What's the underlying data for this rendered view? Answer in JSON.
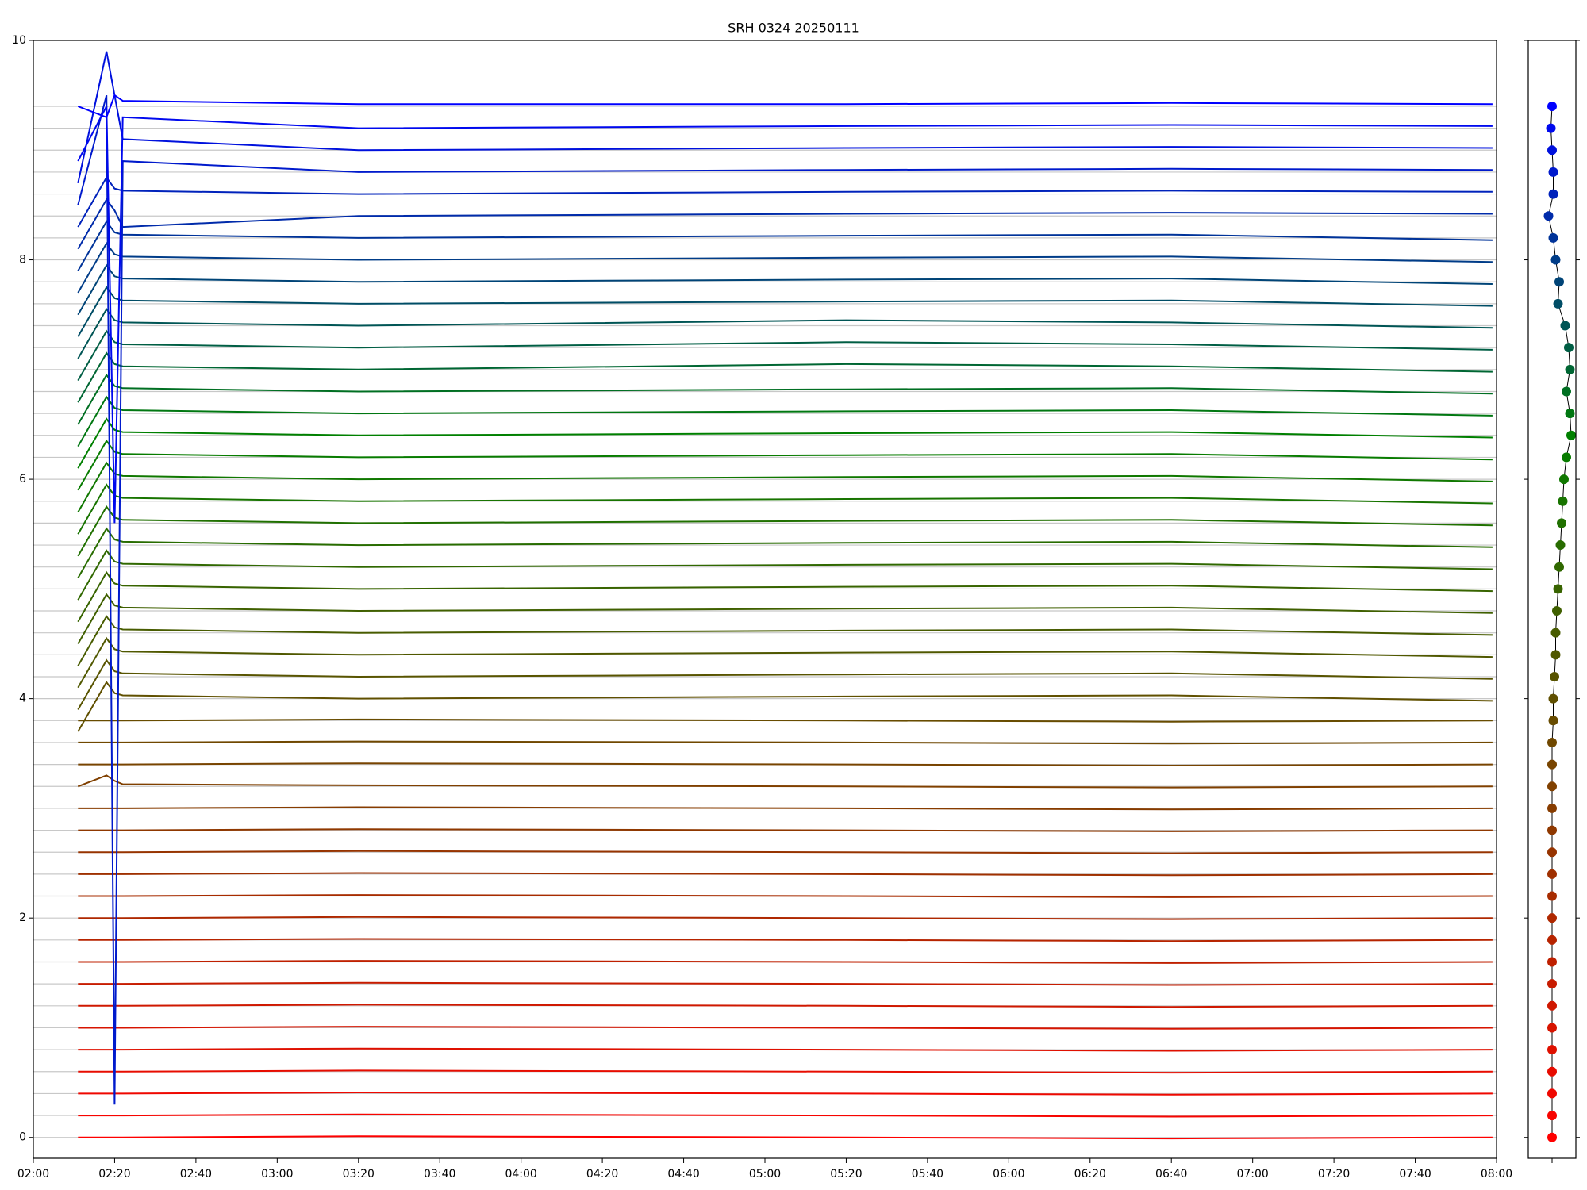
{
  "chart_data": [
    {
      "type": "line",
      "title": "SRH 0324 20250111",
      "x": [
        131,
        138,
        140,
        142,
        200,
        320,
        400,
        479
      ],
      "xlim": [
        120,
        480
      ],
      "xticks": [
        {
          "value": 120,
          "label": "02:00"
        },
        {
          "value": 140,
          "label": "02:20"
        },
        {
          "value": 160,
          "label": "02:40"
        },
        {
          "value": 180,
          "label": "03:00"
        },
        {
          "value": 200,
          "label": "03:20"
        },
        {
          "value": 220,
          "label": "03:40"
        },
        {
          "value": 240,
          "label": "04:00"
        },
        {
          "value": 260,
          "label": "04:20"
        },
        {
          "value": 280,
          "label": "04:40"
        },
        {
          "value": 300,
          "label": "05:00"
        },
        {
          "value": 320,
          "label": "05:20"
        },
        {
          "value": 340,
          "label": "05:40"
        },
        {
          "value": 360,
          "label": "06:00"
        },
        {
          "value": 380,
          "label": "06:20"
        },
        {
          "value": 400,
          "label": "06:40"
        },
        {
          "value": 420,
          "label": "07:00"
        },
        {
          "value": 440,
          "label": "07:20"
        },
        {
          "value": 460,
          "label": "07:40"
        },
        {
          "value": 480,
          "label": "08:00"
        }
      ],
      "ylim": [
        -0.19,
        10
      ],
      "yticks": [
        0,
        2,
        4,
        6,
        8,
        10
      ],
      "grid": true,
      "series": [
        {
          "color": "#ff0000",
          "values": [
            0,
            0,
            0,
            0,
            0.01,
            0,
            -0.01,
            0
          ]
        },
        {
          "color": "#f70400",
          "values": [
            0.2,
            0.2,
            0.2,
            0.2,
            0.21,
            0.2,
            0.19,
            0.2
          ]
        },
        {
          "color": "#ef0800",
          "values": [
            0.4,
            0.4,
            0.4,
            0.4,
            0.41,
            0.4,
            0.39,
            0.4
          ]
        },
        {
          "color": "#e70c00",
          "values": [
            0.6,
            0.6,
            0.6,
            0.6,
            0.61,
            0.6,
            0.59,
            0.6
          ]
        },
        {
          "color": "#df1000",
          "values": [
            0.8,
            0.8,
            0.8,
            0.8,
            0.81,
            0.8,
            0.79,
            0.8
          ]
        },
        {
          "color": "#d71400",
          "values": [
            1,
            1,
            1,
            1,
            1.01,
            1,
            0.99,
            1
          ]
        },
        {
          "color": "#cf1800",
          "values": [
            1.2,
            1.2,
            1.2,
            1.2,
            1.21,
            1.2,
            1.19,
            1.2
          ]
        },
        {
          "color": "#c71c00",
          "values": [
            1.4,
            1.4,
            1.4,
            1.4,
            1.41,
            1.4,
            1.39,
            1.4
          ]
        },
        {
          "color": "#bf2000",
          "values": [
            1.6,
            1.6,
            1.6,
            1.6,
            1.61,
            1.6,
            1.59,
            1.6
          ]
        },
        {
          "color": "#b72400",
          "values": [
            1.8,
            1.8,
            1.8,
            1.8,
            1.81,
            1.8,
            1.79,
            1.8
          ]
        },
        {
          "color": "#af2800",
          "values": [
            2,
            2,
            2,
            2,
            2.01,
            2,
            1.99,
            2
          ]
        },
        {
          "color": "#a72c00",
          "values": [
            2.2,
            2.2,
            2.2,
            2.2,
            2.21,
            2.2,
            2.19,
            2.2
          ]
        },
        {
          "color": "#9f3000",
          "values": [
            2.4,
            2.4,
            2.4,
            2.4,
            2.41,
            2.4,
            2.39,
            2.4
          ]
        },
        {
          "color": "#973400",
          "values": [
            2.6,
            2.6,
            2.6,
            2.6,
            2.61,
            2.6,
            2.59,
            2.6
          ]
        },
        {
          "color": "#8f3800",
          "values": [
            2.8,
            2.8,
            2.8,
            2.8,
            2.81,
            2.8,
            2.79,
            2.8
          ]
        },
        {
          "color": "#873c00",
          "values": [
            3,
            3,
            3,
            3,
            3.01,
            3,
            2.99,
            3
          ]
        },
        {
          "color": "#804000",
          "values": [
            3.2,
            3.3,
            3.25,
            3.22,
            3.21,
            3.2,
            3.19,
            3.2
          ]
        },
        {
          "color": "#784400",
          "values": [
            3.4,
            3.4,
            3.4,
            3.4,
            3.41,
            3.4,
            3.39,
            3.4
          ]
        },
        {
          "color": "#704800",
          "values": [
            3.6,
            3.6,
            3.6,
            3.6,
            3.61,
            3.6,
            3.59,
            3.6
          ]
        },
        {
          "color": "#684c00",
          "values": [
            3.8,
            3.8,
            3.8,
            3.8,
            3.81,
            3.8,
            3.79,
            3.8
          ]
        },
        {
          "color": "#605000",
          "values": [
            3.7,
            4.15,
            4.05,
            4.03,
            4,
            4.02,
            4.03,
            3.98
          ]
        },
        {
          "color": "#585400",
          "values": [
            3.9,
            4.35,
            4.25,
            4.23,
            4.2,
            4.22,
            4.23,
            4.18
          ]
        },
        {
          "color": "#505800",
          "values": [
            4.1,
            4.55,
            4.45,
            4.43,
            4.4,
            4.42,
            4.43,
            4.38
          ]
        },
        {
          "color": "#485c00",
          "values": [
            4.3,
            4.75,
            4.65,
            4.63,
            4.6,
            4.62,
            4.63,
            4.58
          ]
        },
        {
          "color": "#406000",
          "values": [
            4.5,
            4.95,
            4.85,
            4.83,
            4.8,
            4.82,
            4.83,
            4.78
          ]
        },
        {
          "color": "#386400",
          "values": [
            4.7,
            5.15,
            5.05,
            5.03,
            5,
            5.02,
            5.03,
            4.98
          ]
        },
        {
          "color": "#306800",
          "values": [
            4.9,
            5.35,
            5.25,
            5.23,
            5.2,
            5.22,
            5.23,
            5.18
          ]
        },
        {
          "color": "#286c00",
          "values": [
            5.1,
            5.55,
            5.45,
            5.43,
            5.4,
            5.42,
            5.43,
            5.38
          ]
        },
        {
          "color": "#207000",
          "values": [
            5.3,
            5.75,
            5.65,
            5.63,
            5.6,
            5.62,
            5.63,
            5.58
          ]
        },
        {
          "color": "#187400",
          "values": [
            5.5,
            5.95,
            5.85,
            5.83,
            5.8,
            5.82,
            5.83,
            5.78
          ]
        },
        {
          "color": "#107800",
          "values": [
            5.7,
            6.15,
            6.05,
            6.03,
            6,
            6.02,
            6.03,
            5.98
          ]
        },
        {
          "color": "#087c00",
          "values": [
            5.9,
            6.35,
            6.25,
            6.23,
            6.2,
            6.22,
            6.23,
            6.18
          ]
        },
        {
          "color": "#008000",
          "values": [
            6.1,
            6.55,
            6.45,
            6.43,
            6.4,
            6.42,
            6.43,
            6.38
          ]
        },
        {
          "color": "#007711",
          "values": [
            6.3,
            6.75,
            6.65,
            6.63,
            6.6,
            6.62,
            6.63,
            6.58
          ]
        },
        {
          "color": "#006f22",
          "values": [
            6.5,
            6.95,
            6.85,
            6.83,
            6.8,
            6.82,
            6.83,
            6.78
          ]
        },
        {
          "color": "#006633",
          "values": [
            6.7,
            7.15,
            7.05,
            7.03,
            7,
            7.05,
            7.03,
            6.98
          ]
        },
        {
          "color": "#005e44",
          "values": [
            6.9,
            7.35,
            7.25,
            7.23,
            7.2,
            7.25,
            7.23,
            7.18
          ]
        },
        {
          "color": "#005555",
          "values": [
            7.1,
            7.55,
            7.45,
            7.43,
            7.4,
            7.45,
            7.43,
            7.38
          ]
        },
        {
          "color": "#004d66",
          "values": [
            7.3,
            7.75,
            7.65,
            7.63,
            7.6,
            7.62,
            7.63,
            7.58
          ]
        },
        {
          "color": "#004477",
          "values": [
            7.5,
            7.95,
            7.85,
            7.83,
            7.8,
            7.82,
            7.83,
            7.78
          ]
        },
        {
          "color": "#003c88",
          "values": [
            7.7,
            8.15,
            8.05,
            8.03,
            8,
            8.02,
            8.03,
            7.98
          ]
        },
        {
          "color": "#003399",
          "values": [
            7.9,
            8.35,
            8.25,
            8.23,
            8.2,
            8.22,
            8.23,
            8.18
          ]
        },
        {
          "color": "#002baa",
          "values": [
            8.1,
            8.55,
            8.45,
            8.3,
            8.4,
            8.42,
            8.43,
            8.42
          ]
        },
        {
          "color": "#0022bb",
          "values": [
            8.3,
            8.75,
            8.65,
            8.63,
            8.6,
            8.62,
            8.63,
            8.62
          ]
        },
        {
          "color": "#001acc",
          "values": [
            8.5,
            9.5,
            0.3,
            8.9,
            8.8,
            8.82,
            8.83,
            8.82
          ]
        },
        {
          "color": "#0011dd",
          "values": [
            8.7,
            9.9,
            9.5,
            9.1,
            9,
            9.02,
            9.03,
            9.02
          ]
        },
        {
          "color": "#0009ee",
          "values": [
            8.9,
            9.4,
            5.6,
            9.3,
            9.2,
            9.22,
            9.23,
            9.22
          ]
        },
        {
          "color": "#0000ff",
          "values": [
            9.4,
            9.3,
            9.5,
            9.45,
            9.42,
            9.42,
            9.43,
            9.42
          ]
        }
      ]
    },
    {
      "type": "scatter",
      "xlim": [
        -1,
        1
      ],
      "ylim": [
        -0.19,
        10
      ],
      "yticks": [
        0,
        2,
        4,
        6,
        8,
        10
      ],
      "x": [
        0,
        0,
        0,
        0,
        0,
        0,
        0,
        0,
        0,
        0,
        0,
        0,
        0,
        0,
        0,
        0,
        0,
        0,
        0,
        0.05,
        0.05,
        0.1,
        0.15,
        0.15,
        0.2,
        0.25,
        0.3,
        0.35,
        0.4,
        0.45,
        0.5,
        0.6,
        0.8,
        0.75,
        0.6,
        0.75,
        0.7,
        0.55,
        0.25,
        0.3,
        0.15,
        0.05,
        -0.15,
        0.05,
        0.05,
        0,
        -0.05,
        0
      ],
      "y": [
        0,
        0.2,
        0.4,
        0.6,
        0.8,
        1,
        1.2,
        1.4,
        1.6,
        1.8,
        2,
        2.2,
        2.4,
        2.6,
        2.8,
        3,
        3.2,
        3.4,
        3.6,
        3.8,
        4,
        4.2,
        4.4,
        4.6,
        4.8,
        5,
        5.2,
        5.4,
        5.6,
        5.8,
        6,
        6.2,
        6.4,
        6.6,
        6.8,
        7,
        7.2,
        7.4,
        7.6,
        7.8,
        8,
        8.2,
        8.4,
        8.6,
        8.8,
        9,
        9.2,
        9.4
      ]
    }
  ]
}
